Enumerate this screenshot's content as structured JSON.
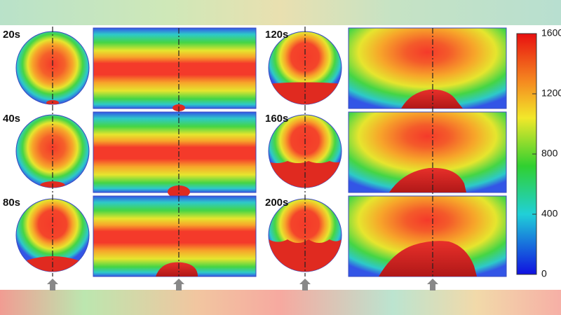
{
  "panels": {
    "labels": [
      "20s",
      "40s",
      "80s",
      "120s",
      "160s",
      "200s"
    ]
  },
  "colorbar": {
    "ylim": [
      0,
      1600
    ],
    "yticks": [
      0,
      400,
      800,
      1200,
      1600
    ]
  }
}
